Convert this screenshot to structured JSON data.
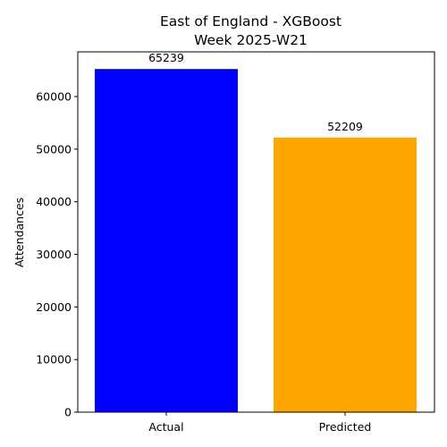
{
  "chart_data": {
    "type": "bar",
    "title": "East of England - XGBoost",
    "subtitle": "Week 2025-W21",
    "xlabel": "",
    "ylabel": "Attendances",
    "categories": [
      "Actual",
      "Predicted"
    ],
    "values": [
      65239,
      52209
    ],
    "data_labels": [
      "65239",
      "52209"
    ],
    "colors": [
      "#0000ff",
      "#ffa500"
    ],
    "ylim": [
      0,
      68500
    ],
    "yticks": [
      0,
      10000,
      20000,
      30000,
      40000,
      50000,
      60000
    ],
    "ytick_labels": [
      "0",
      "10000",
      "20000",
      "30000",
      "40000",
      "50000",
      "60000"
    ],
    "grid": false,
    "legend": "none"
  }
}
